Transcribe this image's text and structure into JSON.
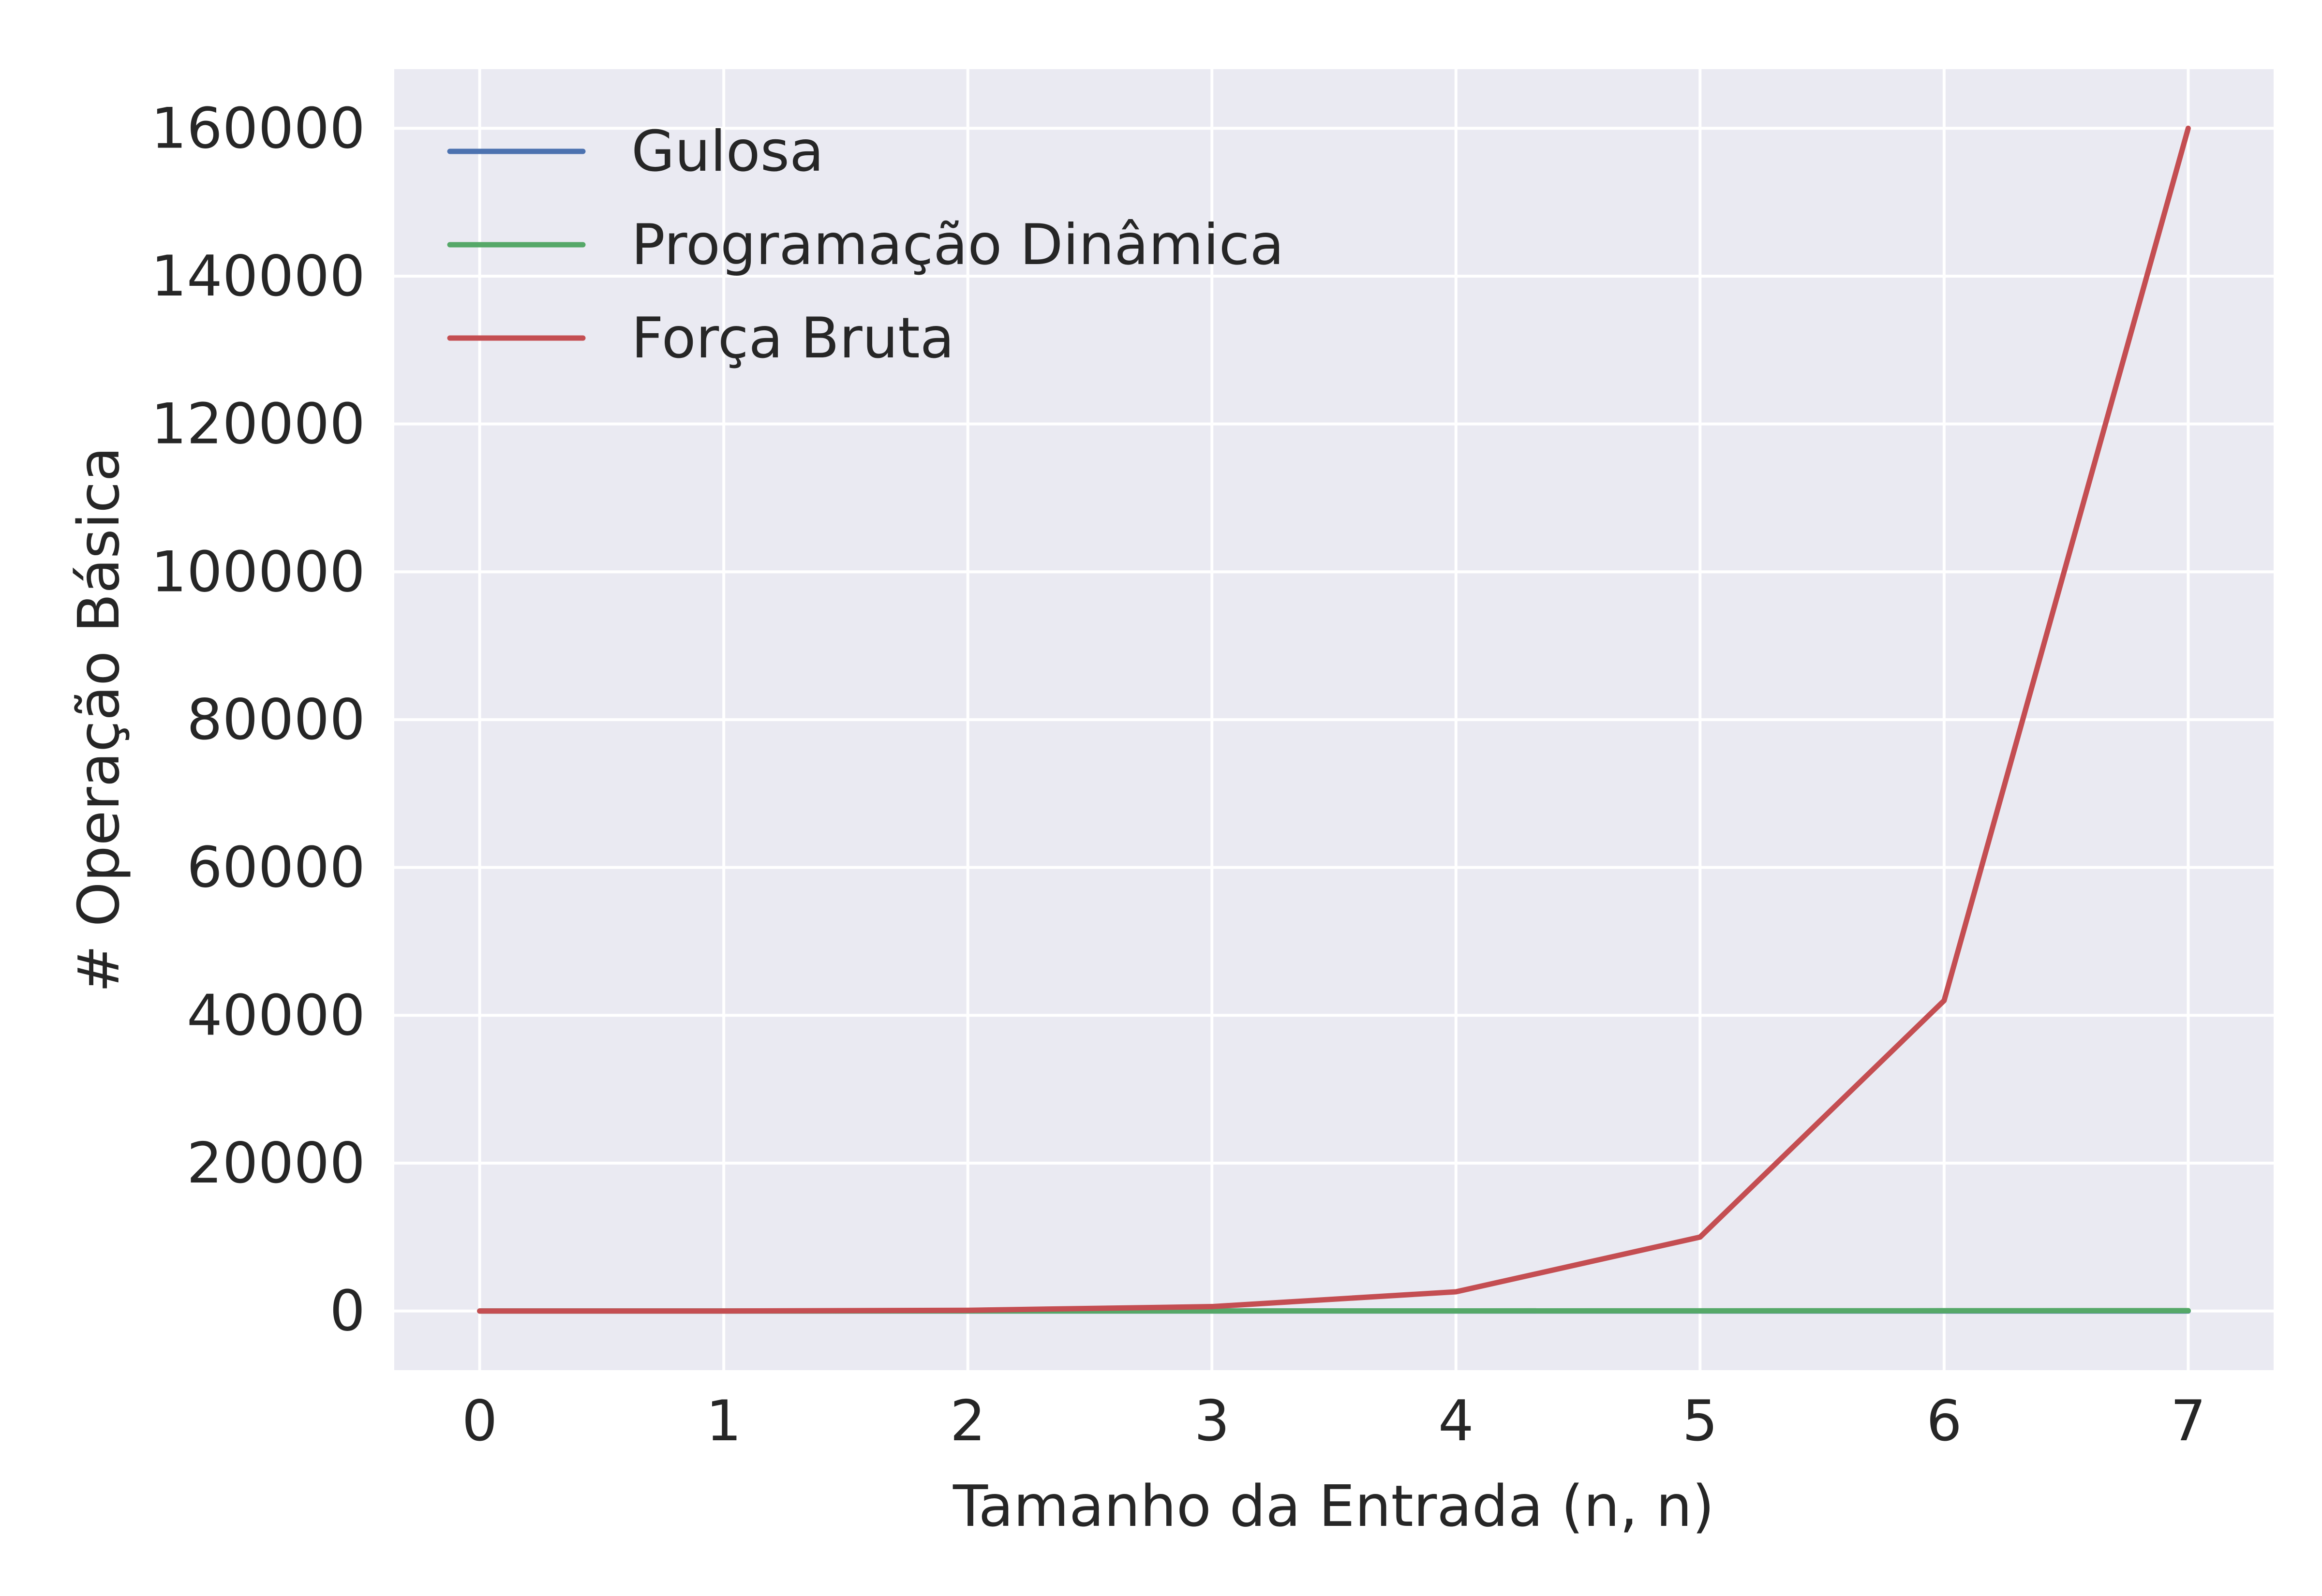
{
  "chart_data": {
    "type": "line",
    "title": "",
    "xlabel": "Tamanho da Entrada (n, n)",
    "ylabel": "# Operação Básica",
    "x": [
      0,
      1,
      2,
      3,
      4,
      5,
      6,
      7
    ],
    "xticks": [
      "0",
      "1",
      "2",
      "3",
      "4",
      "5",
      "6",
      "7"
    ],
    "yticks": [
      "0",
      "20000",
      "40000",
      "60000",
      "80000",
      "100000",
      "120000",
      "140000",
      "160000"
    ],
    "xlim": [
      -0.35,
      7.35
    ],
    "ylim": [
      -8000,
      168000
    ],
    "grid": true,
    "legend_position": "top-left",
    "series": [
      {
        "name": "Gulosa",
        "color": "#4C72B0",
        "values": [
          0,
          0,
          0,
          0,
          0,
          0,
          0,
          0
        ]
      },
      {
        "name": "Programação Dinâmica",
        "color": "#55A868",
        "values": [
          0,
          1,
          4,
          9,
          16,
          25,
          36,
          49
        ]
      },
      {
        "name": "Força Bruta",
        "color": "#C44E52",
        "values": [
          0,
          0,
          100,
          600,
          2600,
          10000,
          42000,
          160000
        ]
      }
    ],
    "background": "#EAEAF2"
  }
}
